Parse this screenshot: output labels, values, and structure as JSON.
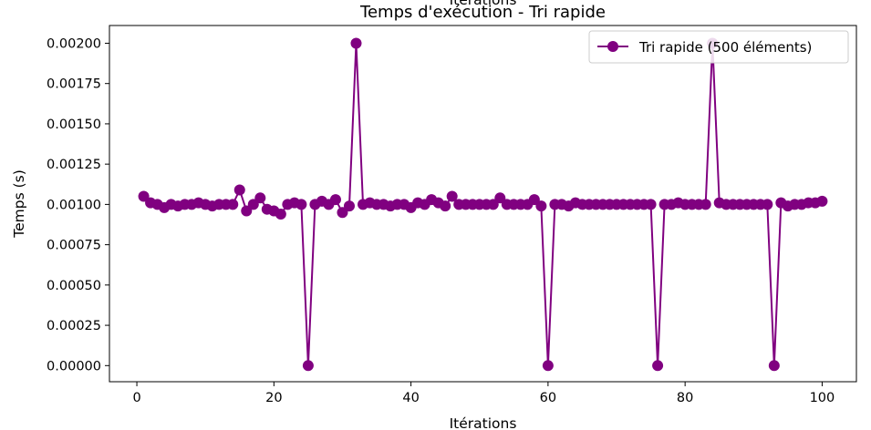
{
  "chart_data": {
    "type": "line",
    "title": "Temps d'exécution - Tri rapide",
    "top_xlabel": "Itérations",
    "xlabel": "Itérations",
    "ylabel": "Temps (s)",
    "xlim": [
      -4,
      105
    ],
    "ylim": [
      -0.0001,
      0.00211
    ],
    "xticks": [
      0,
      20,
      40,
      60,
      80,
      100
    ],
    "xtick_labels": [
      "0",
      "20",
      "40",
      "60",
      "80",
      "100"
    ],
    "yticks": [
      0,
      0.00025,
      0.0005,
      0.00075,
      0.001,
      0.00125,
      0.0015,
      0.00175,
      0.002
    ],
    "ytick_labels": [
      "0.00000",
      "0.00025",
      "0.00050",
      "0.00075",
      "0.00100",
      "0.00125",
      "0.00150",
      "0.00175",
      "0.00200"
    ],
    "grid": false,
    "legend_position": "top-right",
    "series": [
      {
        "name": "Tri rapide (500 éléments)",
        "color": "#800080",
        "marker": "circle",
        "x": [
          1,
          2,
          3,
          4,
          5,
          6,
          7,
          8,
          9,
          10,
          11,
          12,
          13,
          14,
          15,
          16,
          17,
          18,
          19,
          20,
          21,
          22,
          23,
          24,
          25,
          26,
          27,
          28,
          29,
          30,
          31,
          32,
          33,
          34,
          35,
          36,
          37,
          38,
          39,
          40,
          41,
          42,
          43,
          44,
          45,
          46,
          47,
          48,
          49,
          50,
          51,
          52,
          53,
          54,
          55,
          56,
          57,
          58,
          59,
          60,
          61,
          62,
          63,
          64,
          65,
          66,
          67,
          68,
          69,
          70,
          71,
          72,
          73,
          74,
          75,
          76,
          77,
          78,
          79,
          80,
          81,
          82,
          83,
          84,
          85,
          86,
          87,
          88,
          89,
          90,
          91,
          92,
          93,
          94,
          95,
          96,
          97,
          98,
          99,
          100
        ],
        "y": [
          0.00105,
          0.00101,
          0.001,
          0.00098,
          0.001,
          0.00099,
          0.001,
          0.001,
          0.00101,
          0.001,
          0.00099,
          0.001,
          0.001,
          0.001,
          0.00109,
          0.00096,
          0.001,
          0.00104,
          0.00097,
          0.00096,
          0.00094,
          0.001,
          0.00101,
          0.001,
          0.0,
          0.001,
          0.00102,
          0.001,
          0.00103,
          0.00095,
          0.00099,
          0.002,
          0.001,
          0.00101,
          0.001,
          0.001,
          0.00099,
          0.001,
          0.001,
          0.00098,
          0.00101,
          0.001,
          0.00103,
          0.00101,
          0.00099,
          0.00105,
          0.001,
          0.001,
          0.001,
          0.001,
          0.001,
          0.001,
          0.00104,
          0.001,
          0.001,
          0.001,
          0.001,
          0.00103,
          0.00099,
          0.0,
          0.001,
          0.001,
          0.00099,
          0.00101,
          0.001,
          0.001,
          0.001,
          0.001,
          0.001,
          0.001,
          0.001,
          0.001,
          0.001,
          0.001,
          0.001,
          0.0,
          0.001,
          0.001,
          0.00101,
          0.001,
          0.001,
          0.001,
          0.001,
          0.002,
          0.00101,
          0.001,
          0.001,
          0.001,
          0.001,
          0.001,
          0.001,
          0.001,
          0.0,
          0.00101,
          0.00099,
          0.001,
          0.001,
          0.00101,
          0.00101,
          0.00102
        ]
      }
    ]
  }
}
